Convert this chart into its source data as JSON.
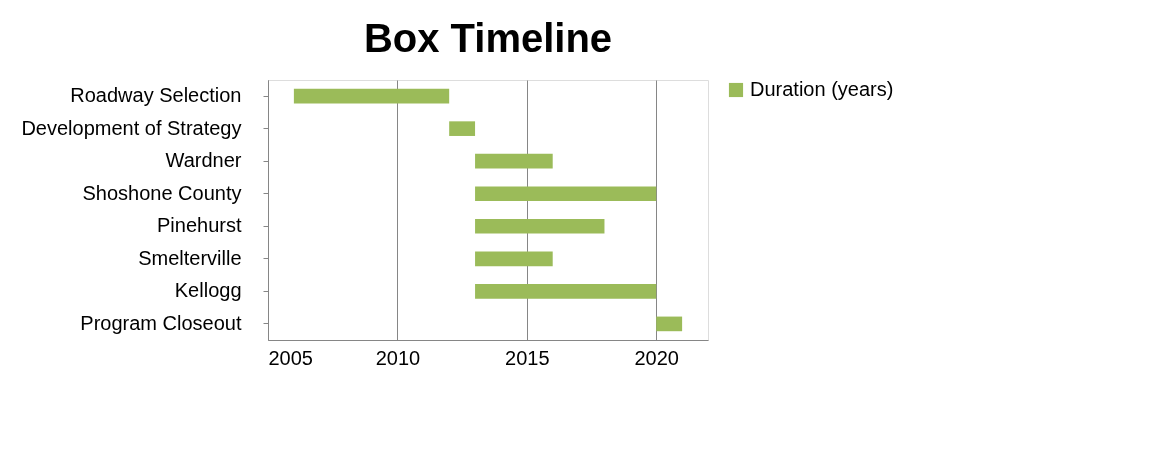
{
  "chart_data": {
    "type": "bar",
    "orientation": "horizontal",
    "title": "Box Timeline",
    "categories": [
      "Roadway Selection",
      "Development of Strategy",
      "Wardner",
      "Shoshone County",
      "Pinehurst",
      "Smelterville",
      "Kellogg",
      "Program Closeout"
    ],
    "series": [
      {
        "name": "Duration (years)",
        "color": "#9bbb59",
        "base": [
          2006,
          2012,
          2013,
          2013,
          2013,
          2013,
          2013,
          2020
        ],
        "values": [
          6,
          1,
          3,
          7,
          5,
          3,
          7,
          1
        ]
      }
    ],
    "xlim": [
      2005,
      2022
    ],
    "xticks": [
      2005,
      2010,
      2015,
      2020
    ],
    "grid": "x",
    "legend": "right"
  }
}
